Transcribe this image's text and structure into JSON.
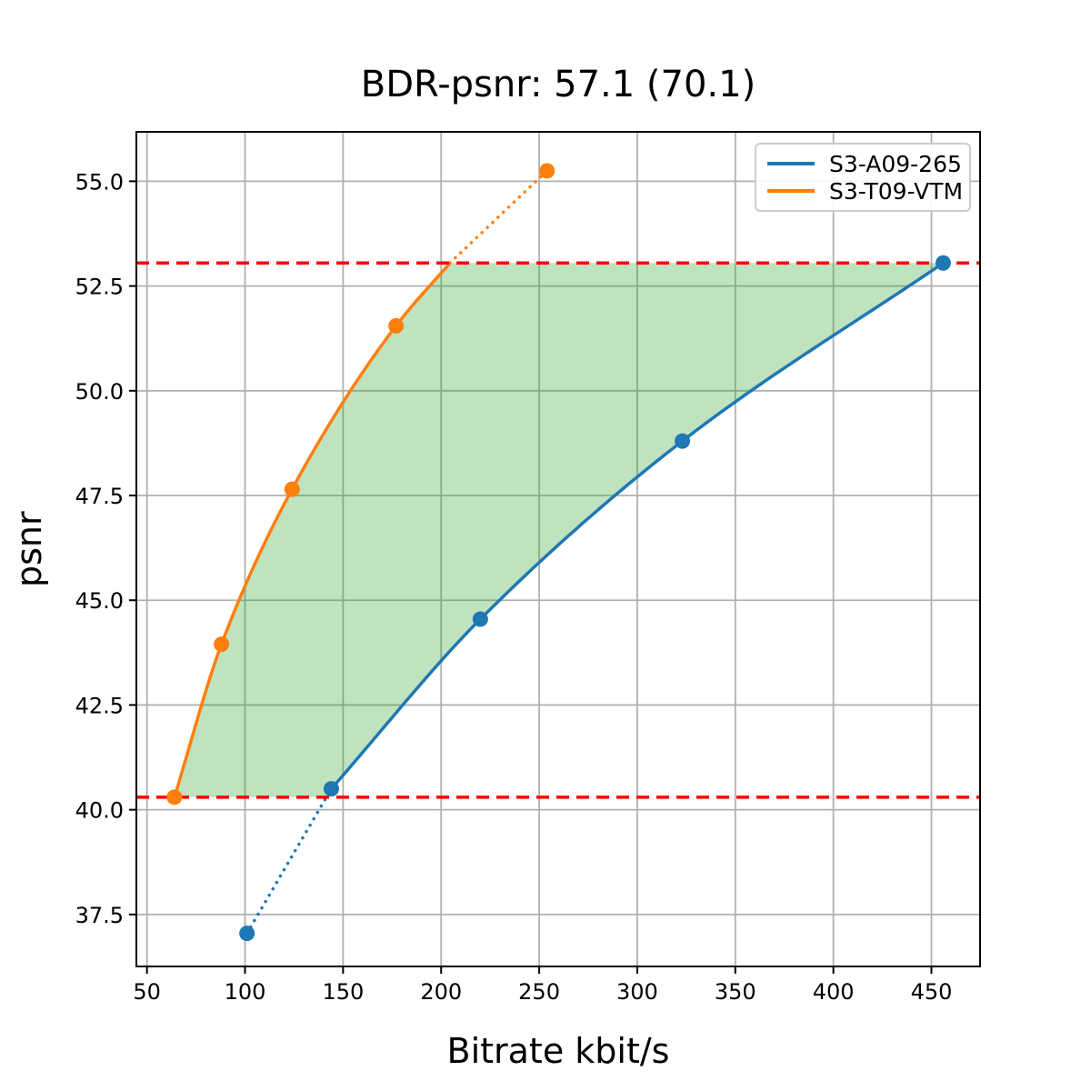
{
  "chart_data": {
    "type": "line",
    "title": "BDR-psnr: 57.1 (70.1)",
    "xlabel": "Bitrate kbit/s",
    "ylabel": "psnr",
    "xlim": [
      44.6,
      474.8
    ],
    "ylim": [
      36.26,
      56.18
    ],
    "x_ticks": [
      50,
      100,
      150,
      200,
      250,
      300,
      350,
      400,
      450
    ],
    "y_ticks": [
      37.5,
      40.0,
      42.5,
      45.0,
      47.5,
      50.0,
      52.5,
      55.0
    ],
    "grid": true,
    "grid_color": "#b0b0b0",
    "series": [
      {
        "name": "S3-A09-265",
        "color": "#1f77b4",
        "x": [
          101,
          144,
          220,
          323,
          456
        ],
        "y": [
          37.05,
          40.5,
          44.55,
          48.8,
          53.05
        ],
        "solid": {
          "x": [
            144,
            220,
            323,
            456
          ],
          "y": [
            40.5,
            44.55,
            48.8,
            53.05
          ]
        },
        "dotted": {
          "x": [
            101,
            144
          ],
          "y": [
            37.05,
            40.5
          ]
        }
      },
      {
        "name": "S3-T09-VTM",
        "color": "#ff7f0e",
        "x": [
          64,
          88,
          124,
          177,
          254
        ],
        "y": [
          40.3,
          43.95,
          47.65,
          51.55,
          55.25
        ],
        "solid": {
          "x": [
            64,
            88,
            124,
            177,
            204.5
          ],
          "y": [
            40.3,
            43.95,
            47.65,
            51.55,
            53.05
          ]
        },
        "dotted": {
          "x": [
            204.5,
            254
          ],
          "y": [
            53.05,
            55.25
          ]
        }
      }
    ],
    "threshold_lines": {
      "color": "#ff0000",
      "style": "dashed",
      "values": [
        40.3,
        53.05
      ]
    },
    "bd_region": {
      "color": "#2ca02c",
      "opacity": 0.3,
      "psnr_low": 40.3,
      "psnr_high": 53.05,
      "left_series": 1,
      "right_series": 0,
      "right_x_at_low": 141.7
    },
    "legend": {
      "position": "upper right",
      "entries": [
        "S3-A09-265",
        "S3-T09-VTM"
      ]
    }
  }
}
